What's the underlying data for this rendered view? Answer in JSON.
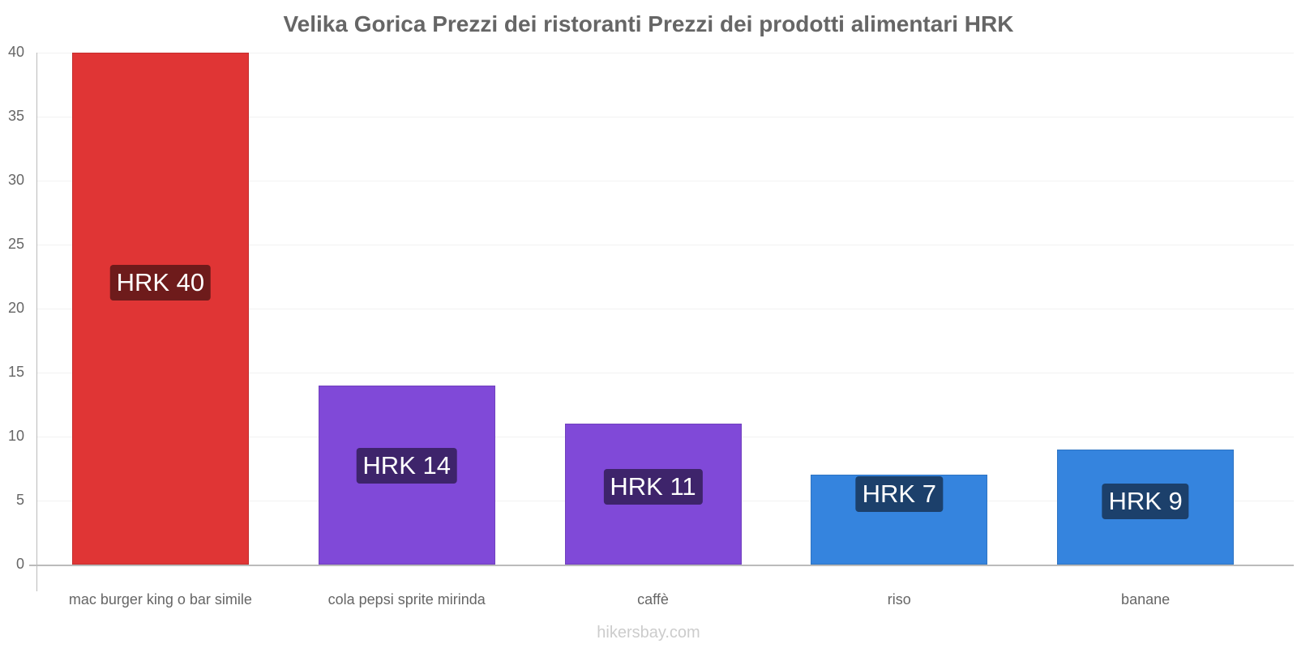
{
  "title": "Velika Gorica Prezzi dei ristoranti Prezzi dei prodotti alimentari HRK",
  "watermark": "hikersbay.com",
  "chart_data": {
    "type": "bar",
    "title": "Velika Gorica Prezzi dei ristoranti Prezzi dei prodotti alimentari HRK",
    "xlabel": "",
    "ylabel": "",
    "ylim": [
      0,
      40
    ],
    "yticks": [
      "0",
      "5",
      "10",
      "15",
      "20",
      "25",
      "30",
      "35",
      "40"
    ],
    "grid": true,
    "legend": "none",
    "categories": [
      "mac burger king o bar simile",
      "cola pepsi sprite mirinda",
      "caffè",
      "riso",
      "banane"
    ],
    "values": [
      40,
      14,
      11,
      7,
      9
    ],
    "labels": [
      "HRK 40",
      "HRK 14",
      "HRK 11",
      "HRK 7",
      "HRK 9"
    ],
    "colors": [
      "#e03535",
      "#8049d8",
      "#8049d8",
      "#3584de",
      "#3584de"
    ],
    "label_bg_colors": [
      "#6e1b1b",
      "#3e246b",
      "#3e246b",
      "#1c406b",
      "#1c406b"
    ]
  }
}
